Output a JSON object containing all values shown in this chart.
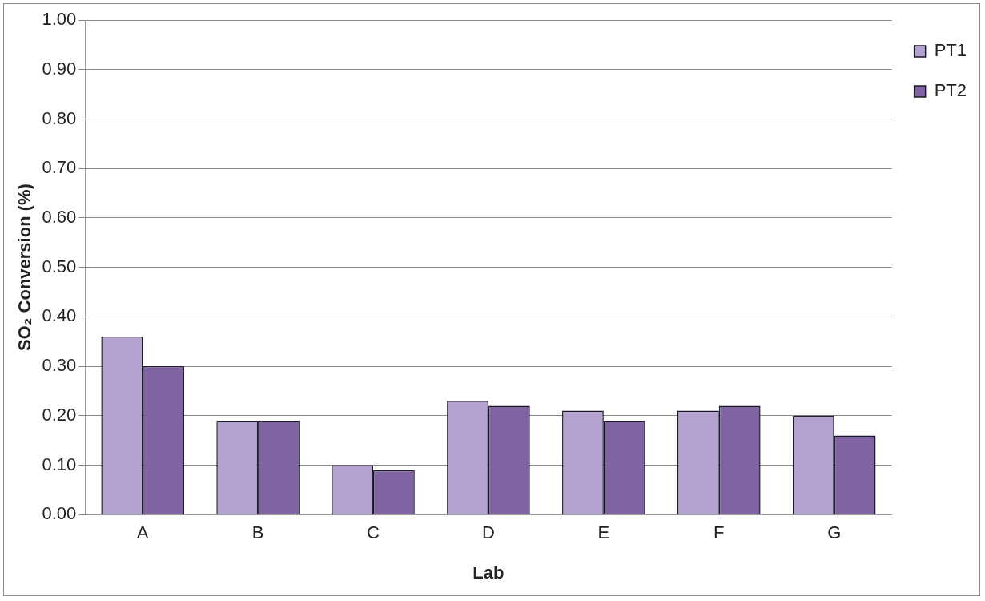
{
  "chart_data": {
    "type": "bar",
    "xlabel": "Lab",
    "ylabel": "SO₂ Conversion (%)",
    "categories": [
      "A",
      "B",
      "C",
      "D",
      "E",
      "F",
      "G"
    ],
    "series": [
      {
        "name": "PT1",
        "color": "#b3a2d0",
        "values": [
          0.36,
          0.19,
          0.1,
          0.23,
          0.21,
          0.21,
          0.2
        ]
      },
      {
        "name": "PT2",
        "color": "#8064a2",
        "values": [
          0.3,
          0.19,
          0.09,
          0.22,
          0.19,
          0.22,
          0.16
        ]
      }
    ],
    "ylim": [
      0,
      1
    ],
    "yticks": [
      {
        "value": 0,
        "label": "0.00"
      },
      {
        "value": 0.1,
        "label": "0.10"
      },
      {
        "value": 0.2,
        "label": "0.20"
      },
      {
        "value": 0.3,
        "label": "0.30"
      },
      {
        "value": 0.4,
        "label": "0.40"
      },
      {
        "value": 0.5,
        "label": "0.50"
      },
      {
        "value": 0.6,
        "label": "0.60"
      },
      {
        "value": 0.7,
        "label": "0.70"
      },
      {
        "value": 0.8,
        "label": "0.80"
      },
      {
        "value": 0.9,
        "label": "0.90"
      },
      {
        "value": 1,
        "label": "1.00"
      }
    ],
    "grid": "y",
    "legend": "top right"
  }
}
